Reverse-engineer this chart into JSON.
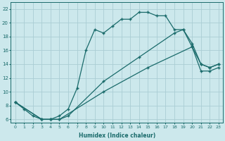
{
  "xlabel": "Humidex (Indice chaleur)",
  "ylabel": "",
  "bg_color": "#cce8ec",
  "grid_color": "#aacdd4",
  "line_color": "#1a6b6b",
  "xlim": [
    -0.5,
    23.5
  ],
  "ylim": [
    5.5,
    23
  ],
  "xticks": [
    0,
    1,
    2,
    3,
    4,
    5,
    6,
    7,
    8,
    9,
    10,
    11,
    12,
    13,
    14,
    15,
    16,
    17,
    18,
    19,
    20,
    21,
    22,
    23
  ],
  "yticks": [
    6,
    8,
    10,
    12,
    14,
    16,
    18,
    20,
    22
  ],
  "line1_x": [
    0,
    1,
    2,
    3,
    4,
    5,
    6,
    7,
    8,
    9,
    10,
    11,
    12,
    13,
    14,
    15,
    16,
    17,
    18,
    19,
    20,
    21,
    22,
    23
  ],
  "line1_y": [
    8.5,
    7.5,
    6.5,
    6.0,
    6.0,
    6.5,
    7.5,
    10.5,
    16.0,
    19.0,
    18.5,
    19.5,
    20.5,
    20.5,
    21.5,
    21.5,
    21.0,
    21.0,
    19.0,
    19.0,
    16.5,
    14.0,
    13.5,
    14.0
  ],
  "line2_x": [
    0,
    3,
    4,
    5,
    6,
    10,
    14,
    18,
    19,
    20,
    21,
    22,
    23
  ],
  "line2_y": [
    8.5,
    6.0,
    6.0,
    6.0,
    6.5,
    11.5,
    15.0,
    18.5,
    19.0,
    17.0,
    14.0,
    13.5,
    14.0
  ],
  "line3_x": [
    0,
    3,
    4,
    5,
    10,
    15,
    20,
    21,
    22,
    23
  ],
  "line3_y": [
    8.5,
    6.0,
    6.0,
    6.0,
    10.0,
    13.5,
    16.5,
    13.0,
    13.0,
    13.5
  ]
}
